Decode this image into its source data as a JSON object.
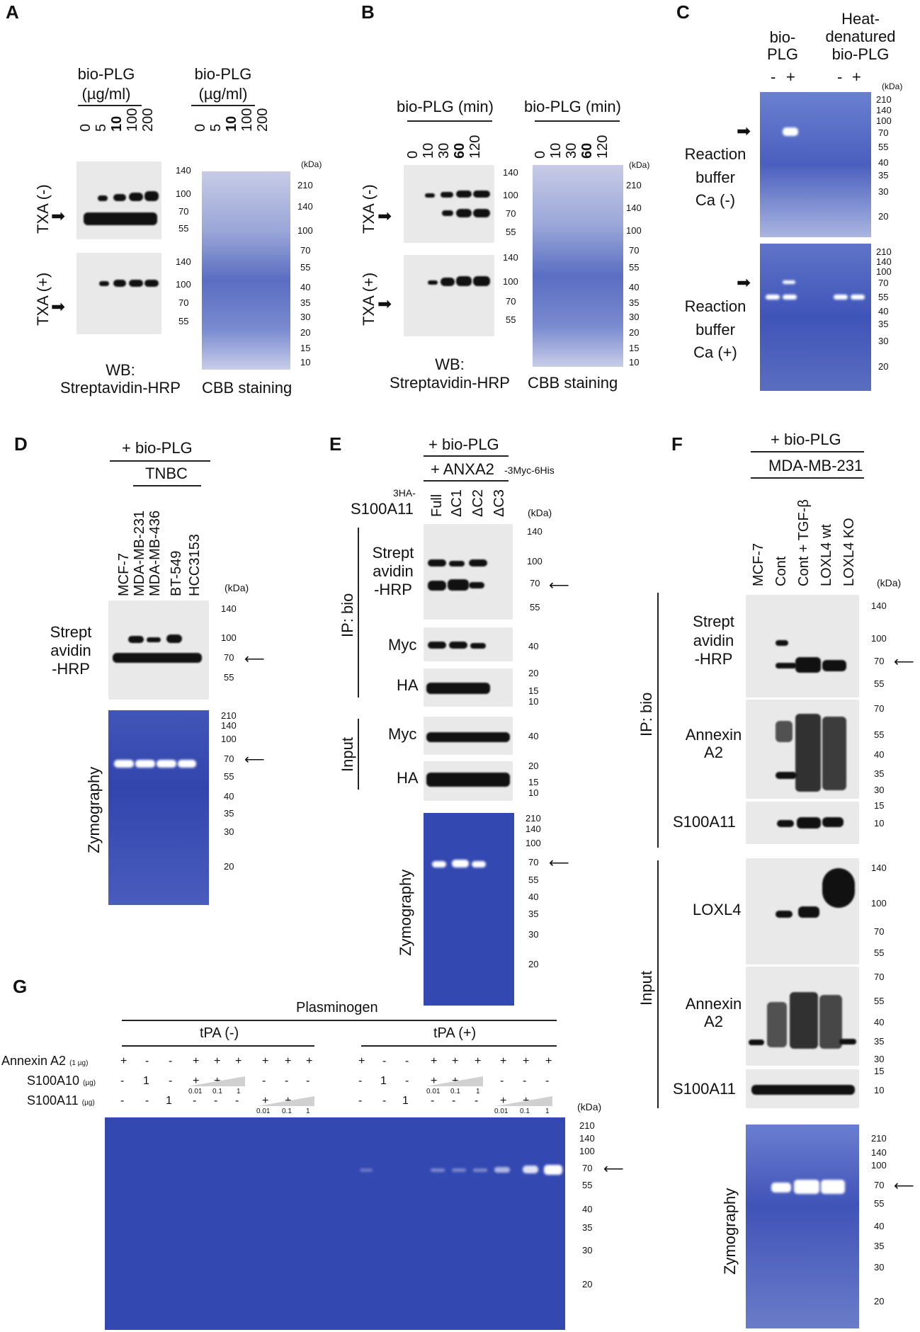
{
  "panels": {
    "A": {
      "label": "A",
      "left_title": [
        "bio-PLG",
        "(µg/ml)"
      ],
      "right_title": [
        "bio-PLG",
        "(µg/ml)"
      ],
      "lanes": [
        "0",
        "5",
        "10",
        "100",
        "200"
      ],
      "row_labels": [
        "TXA (-)",
        "TXA (+)"
      ],
      "markers_top": [
        "140",
        "100",
        "70",
        "55"
      ],
      "markers_bottom": [
        "140",
        "100",
        "70",
        "55"
      ],
      "cbb_markers": [
        "(kDa)",
        "210",
        "140",
        "100",
        "70",
        "55",
        "40",
        "35",
        "30",
        "20",
        "15",
        "10"
      ],
      "left_caption": [
        "WB:",
        "Streptavidin-HRP"
      ],
      "right_caption": "CBB staining"
    },
    "B": {
      "label": "B",
      "left_title": "bio-PLG (min)",
      "right_title": "bio-PLG (min)",
      "lanes": [
        "0",
        "10",
        "30",
        "60",
        "120"
      ],
      "row_labels": [
        "TXA (-)",
        "TXA (+)"
      ],
      "markers_top": [
        "140",
        "100",
        "70",
        "55"
      ],
      "markers_bottom": [
        "140",
        "100",
        "70",
        "55"
      ],
      "cbb_markers": [
        "(kDa)",
        "210",
        "140",
        "100",
        "70",
        "55",
        "40",
        "35",
        "30",
        "20",
        "15",
        "10"
      ],
      "left_caption": [
        "WB:",
        "Streptavidin-HRP"
      ],
      "right_caption": "CBB staining"
    },
    "C": {
      "label": "C",
      "col1": [
        "bio-",
        "PLG"
      ],
      "col2": [
        "Heat-",
        "denatured",
        "bio-PLG"
      ],
      "signs": [
        "-",
        "+",
        "-",
        "+"
      ],
      "row1": [
        "Reaction",
        "buffer",
        "Ca (-)"
      ],
      "row2": [
        "Reaction",
        "buffer",
        "Ca (+)"
      ],
      "markers_top": [
        "(kDa)",
        "210",
        "140",
        "100",
        "70",
        "55",
        "40",
        "35",
        "30",
        "20"
      ],
      "markers_bottom": [
        "210",
        "140",
        "100",
        "70",
        "55",
        "40",
        "35",
        "30",
        "20"
      ]
    },
    "D": {
      "label": "D",
      "header": "+ bio-PLG",
      "group": "TNBC",
      "lanes": [
        "MCF-7",
        "MDA-MB-231",
        "MDA-MB-436",
        "BT-549",
        "HCC3153"
      ],
      "kda": "(kDa)",
      "blot_label": [
        "Strept",
        "avidin",
        "-HRP"
      ],
      "blot_markers": [
        "140",
        "100",
        "70",
        "55"
      ],
      "zymo_label": "Zymography",
      "zymo_markers": [
        "210",
        "140",
        "100",
        "70",
        "55",
        "40",
        "35",
        "30",
        "20"
      ]
    },
    "E": {
      "label": "E",
      "header": "+ bio-PLG",
      "sub_header": "+ ANXA2",
      "sub_header_suffix": "-3Myc-6His",
      "construct_prefix": "3HA-",
      "construct": "S100A11",
      "lanes": [
        "Full",
        "ΔC1",
        "ΔC2",
        "ΔC3"
      ],
      "kda": "(kDa)",
      "ip_label": "IP: bio",
      "input_label": "Input",
      "rows": [
        {
          "label": [
            "Strept",
            "avidin",
            "-HRP"
          ],
          "markers": [
            "140",
            "100",
            "70",
            "55"
          ]
        },
        {
          "label": [
            "Myc"
          ],
          "markers": [
            "40"
          ]
        },
        {
          "label": [
            "HA"
          ],
          "markers": [
            "20",
            "15",
            "10"
          ]
        },
        {
          "label": [
            "Myc"
          ],
          "markers": [
            "40"
          ]
        },
        {
          "label": [
            "HA"
          ],
          "markers": [
            "20",
            "15",
            "10"
          ]
        }
      ],
      "zymo_label": "Zymography",
      "zymo_markers": [
        "210",
        "140",
        "100",
        "70",
        "55",
        "40",
        "35",
        "30",
        "20"
      ]
    },
    "F": {
      "label": "F",
      "header": "+ bio-PLG",
      "cell_line": "MDA-MB-231",
      "lanes": [
        "MCF-7",
        "Cont",
        "Cont + TGF-β",
        "LOXL4 wt",
        "LOXL4 KO"
      ],
      "kda": "(kDa)",
      "ip_label": "IP: bio",
      "input_label": "Input",
      "rows": [
        {
          "label": [
            "Strept",
            "avidin",
            "-HRP"
          ],
          "markers": [
            "140",
            "100",
            "70",
            "55"
          ]
        },
        {
          "label": [
            "Annexin",
            "A2"
          ],
          "markers": [
            "70",
            "55",
            "40",
            "35",
            "30"
          ]
        },
        {
          "label": [
            "S100A11"
          ],
          "markers": [
            "15",
            "10"
          ]
        },
        {
          "label": [
            "LOXL4"
          ],
          "markers": [
            "140",
            "100",
            "70",
            "55"
          ]
        },
        {
          "label": [
            "Annexin",
            "A2"
          ],
          "markers": [
            "70",
            "55",
            "40",
            "35",
            "30"
          ]
        },
        {
          "label": [
            "S100A11"
          ],
          "markers": [
            "15",
            "10"
          ]
        }
      ],
      "zymo_label": "Zymography",
      "zymo_markers": [
        "210",
        "140",
        "100",
        "70",
        "55",
        "40",
        "35",
        "30",
        "20"
      ]
    },
    "G": {
      "label": "G",
      "header": "Plasminogen",
      "group_left": "tPA (-)",
      "group_right": "tPA (+)",
      "row_labels": [
        {
          "name": "Annexin A2",
          "unit": "(1 µg)"
        },
        {
          "name": "S100A10",
          "unit": "(µg)"
        },
        {
          "name": "S100A11",
          "unit": "(µg)"
        }
      ],
      "row_annexin": [
        "+",
        "-",
        "-",
        "+",
        "+",
        "+",
        "+",
        "+",
        "+"
      ],
      "row_s100a10": [
        "-",
        "1",
        "-",
        "+",
        "+",
        "+",
        "-",
        "-",
        "-"
      ],
      "row_s100a11": [
        "-",
        "-",
        "1",
        "-",
        "-",
        "-",
        "+",
        "+",
        "+"
      ],
      "doses": [
        "0.01",
        "0.1",
        "1"
      ],
      "kda": "(kDa)",
      "markers": [
        "210",
        "140",
        "100",
        "70",
        "55",
        "40",
        "35",
        "30",
        "20"
      ]
    }
  }
}
